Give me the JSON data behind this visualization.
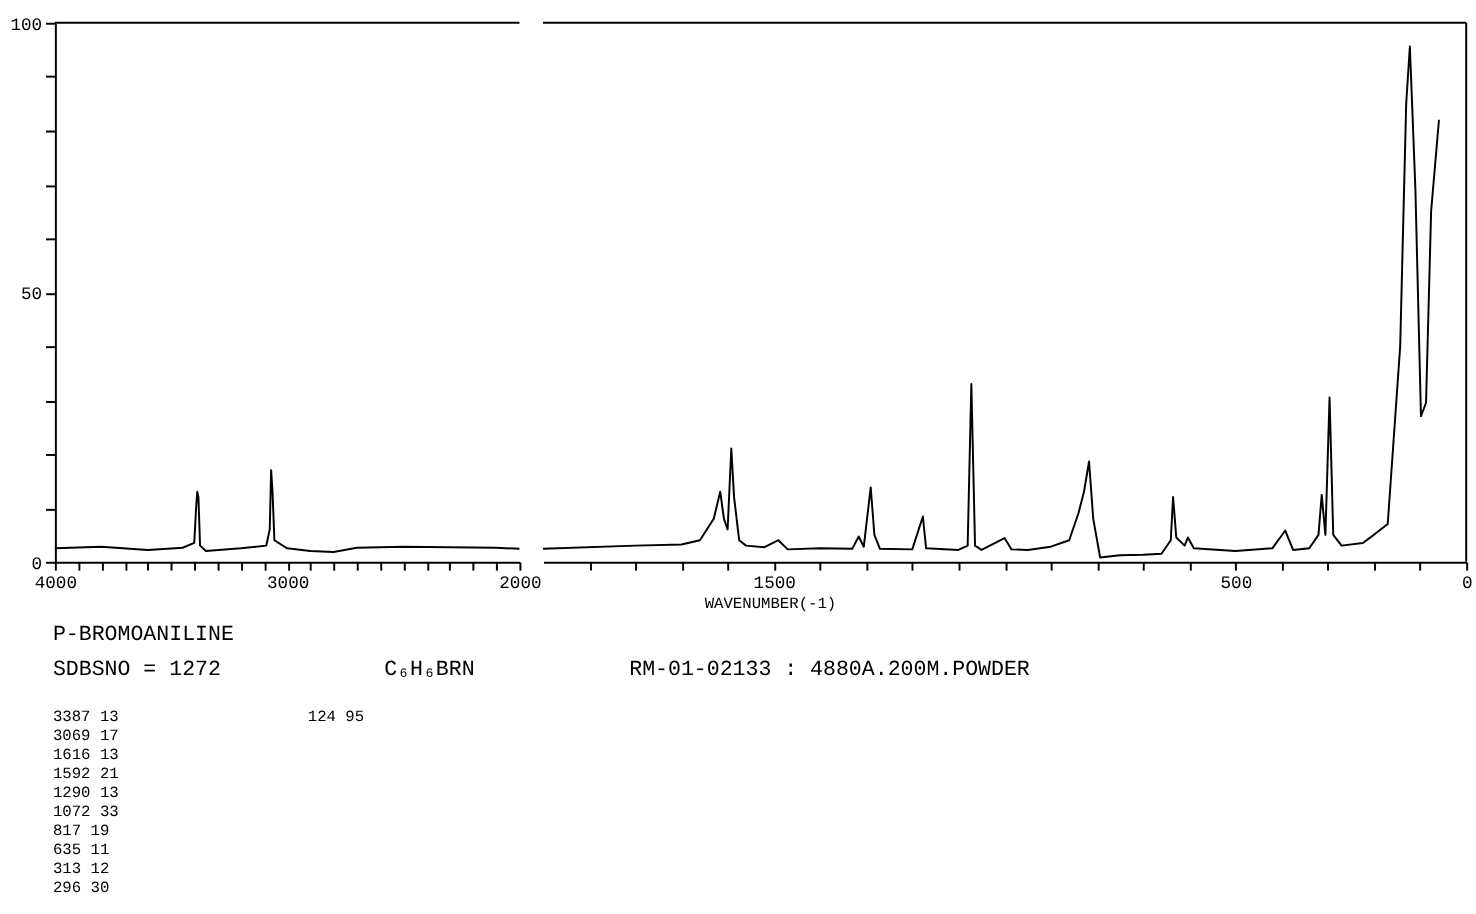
{
  "chart_data": [
    {
      "type": "line",
      "x": [
        4000,
        3800,
        3600,
        3450,
        3400,
        3392,
        3387,
        3382,
        3375,
        3350,
        3200,
        3090,
        3075,
        3069,
        3063,
        3055,
        3000,
        2900,
        2800,
        2700,
        2500,
        2300,
        2100,
        2000
      ],
      "series": [
        {
          "color": "#000000",
          "values": [
            2.5,
            2.8,
            2.2,
            2.6,
            3.5,
            10,
            13,
            12,
            3,
            2,
            2.5,
            3,
            6,
            17,
            13,
            4,
            2.5,
            2,
            1.8,
            2.6,
            2.8,
            2.7,
            2.6,
            2.4
          ]
        }
      ],
      "xlim": [
        4000,
        2000
      ],
      "xticks": [
        4000,
        {
          "value": 3900,
          "label": null
        },
        {
          "value": 3800,
          "label": null
        },
        {
          "value": 3700,
          "label": null
        },
        {
          "value": 3600,
          "label": null
        },
        {
          "value": 3500,
          "label": null
        },
        {
          "value": 3400,
          "label": null
        },
        {
          "value": 3300,
          "label": null
        },
        {
          "value": 3200,
          "label": null
        },
        {
          "value": 3100,
          "label": null
        },
        3000,
        {
          "value": 2900,
          "label": null
        },
        {
          "value": 2800,
          "label": null
        },
        {
          "value": 2700,
          "label": null
        },
        {
          "value": 2600,
          "label": null
        },
        {
          "value": 2500,
          "label": null
        },
        {
          "value": 2400,
          "label": null
        },
        {
          "value": 2300,
          "label": null
        },
        {
          "value": 2200,
          "label": null
        },
        {
          "value": 2100,
          "label": null
        },
        2000
      ],
      "ylim": [
        0,
        100
      ],
      "yticks": [
        0,
        {
          "value": 10,
          "label": null
        },
        {
          "value": 20,
          "label": null
        },
        {
          "value": 30,
          "label": null
        },
        {
          "value": 40,
          "label": null
        },
        50,
        {
          "value": 60,
          "label": null
        },
        {
          "value": 70,
          "label": null
        },
        {
          "value": 80,
          "label": null
        },
        {
          "value": 90,
          "label": null
        },
        100
      ],
      "grid": false,
      "marker": "none",
      "line_style": "solid",
      "annotations": [
        "P-BROMOANILINE",
        "SDBSNO = 1272",
        "C₆H₆BRN",
        "RM-01-02133 : 4880A.200M.POWDER",
        "3387 13",
        "3069 17",
        "1616 13",
        "1592 21",
        "1290 13",
        "1072 33",
        "817 19",
        "635 11",
        "313 12",
        "296 30",
        "124 95"
      ]
    },
    {
      "type": "line",
      "xlabel": "WAVENUMBER(-1)",
      "x": [
        2000,
        1800,
        1700,
        1660,
        1630,
        1616,
        1608,
        1600,
        1592,
        1586,
        1575,
        1560,
        1520,
        1490,
        1470,
        1400,
        1330,
        1316,
        1305,
        1290,
        1282,
        1270,
        1200,
        1177,
        1170,
        1100,
        1080,
        1072,
        1064,
        1050,
        1000,
        985,
        950,
        900,
        860,
        840,
        828,
        817,
        808,
        793,
        750,
        700,
        660,
        640,
        635,
        628,
        610,
        603,
        590,
        500,
        420,
        392,
        375,
        340,
        320,
        313,
        305,
        296,
        288,
        270,
        224,
        200,
        170,
        143,
        130,
        122,
        110,
        98,
        87,
        76,
        59
      ],
      "series": [
        {
          "color": "#000000",
          "values": [
            2.4,
            3,
            3.2,
            4,
            8,
            13,
            8,
            6,
            21,
            12,
            4,
            3,
            2.7,
            4,
            2.3,
            2.5,
            2.4,
            4.7,
            2.8,
            13.8,
            5,
            2.4,
            2.3,
            8.4,
            2.5,
            2.2,
            3,
            33,
            3,
            2.2,
            4.4,
            2.3,
            2.2,
            2.8,
            4,
            9,
            13,
            18.6,
            8,
            0.8,
            1.2,
            1.3,
            1.5,
            4,
            12,
            4.5,
            3,
            4.5,
            2.5,
            2,
            2.5,
            5.8,
            2.2,
            2.5,
            5,
            12.4,
            5,
            30.5,
            5,
            3,
            3.5,
            5,
            7,
            40,
            85,
            95.6,
            69,
            27,
            29.5,
            65,
            82
          ]
        }
      ],
      "xlim": [
        2000,
        0
      ],
      "xticks": [
        {
          "value": 1900,
          "label": null
        },
        {
          "value": 1800,
          "label": null
        },
        {
          "value": 1700,
          "label": null
        },
        {
          "value": 1600,
          "label": null
        },
        1500,
        {
          "value": 1400,
          "label": null
        },
        {
          "value": 1300,
          "label": null
        },
        {
          "value": 1200,
          "label": null
        },
        {
          "value": 1100,
          "label": null
        },
        {
          "value": 1000,
          "label": null
        },
        {
          "value": 900,
          "label": null
        },
        {
          "value": 800,
          "label": null
        },
        {
          "value": 700,
          "label": null
        },
        {
          "value": 600,
          "label": null
        },
        500,
        {
          "value": 400,
          "label": null
        },
        {
          "value": 300,
          "label": null
        },
        {
          "value": 200,
          "label": null
        },
        {
          "value": 100,
          "label": null
        },
        0
      ],
      "ylim": [
        0,
        100
      ],
      "tick_labels": "x",
      "grid": false,
      "marker": "none",
      "line_style": "solid"
    }
  ]
}
